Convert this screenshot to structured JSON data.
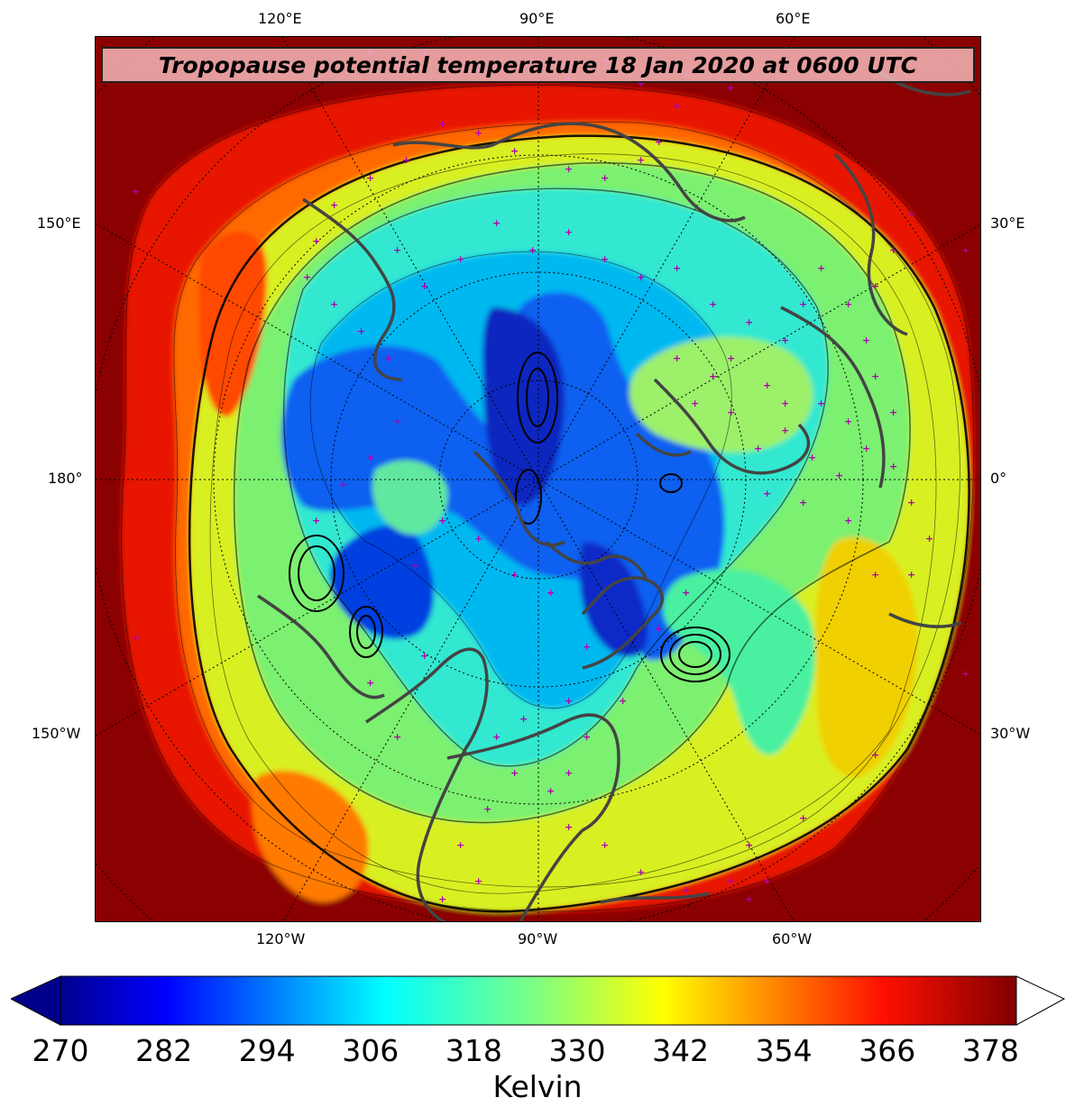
{
  "title": "Tropopause potential temperature 18 Jan 2020 at 0600 UTC",
  "longitude_labels": {
    "top": [
      "120°E",
      "90°E",
      "60°E"
    ],
    "bottom": [
      "120°W",
      "90°W",
      "60°W"
    ],
    "left": [
      "150°E",
      "180°",
      "150°W"
    ],
    "right": [
      "30°E",
      "0°",
      "30°W"
    ]
  },
  "colorbar": {
    "ticks": [
      "270",
      "282",
      "294",
      "306",
      "318",
      "330",
      "342",
      "354",
      "366",
      "378"
    ],
    "label": "Kelvin",
    "min": 270,
    "max": 381,
    "extend": "both",
    "colormap": "jet"
  },
  "colors": {
    "coastline": "#444444",
    "station_marker": "#b000b0",
    "contour": "#000000",
    "over_color": "#ffffff",
    "under_color": "#00008b"
  }
}
